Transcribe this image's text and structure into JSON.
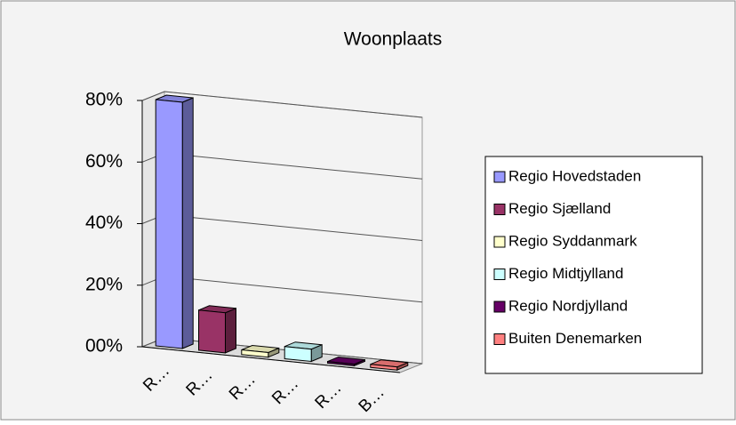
{
  "chart_data": {
    "type": "bar3d",
    "title": "Woonplaats",
    "categories": [
      "R…",
      "R…",
      "R…",
      "R…",
      "R…",
      "B…"
    ],
    "values": [
      80,
      13,
      1.5,
      4,
      0.5,
      1
    ],
    "legend": [
      {
        "name": "Regio Hovedstaden",
        "color": "#9999ff"
      },
      {
        "name": "Regio Sjælland",
        "color": "#993366"
      },
      {
        "name": "Regio Syddanmark",
        "color": "#ffffcc"
      },
      {
        "name": "Regio Midtjylland",
        "color": "#ccffff"
      },
      {
        "name": "Regio Nordjylland",
        "color": "#660066"
      },
      {
        "name": "Buiten Denemarken",
        "color": "#ff8080"
      }
    ],
    "ylim": [
      0,
      80
    ],
    "yticks": [
      {
        "value": 0,
        "label": "00%"
      },
      {
        "value": 20,
        "label": "20%"
      },
      {
        "value": 40,
        "label": "40%"
      },
      {
        "value": 60,
        "label": "60%"
      },
      {
        "value": 80,
        "label": "80%"
      }
    ],
    "grid": true,
    "legend_position": "right"
  }
}
